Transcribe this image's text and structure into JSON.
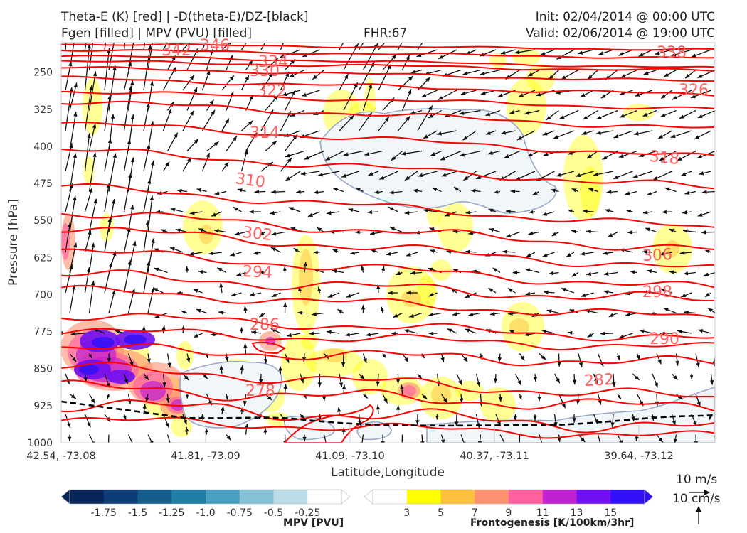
{
  "header": {
    "line1_left": "Theta-E (K) [red] | -D(theta-E)/DZ-[black]",
    "line2_left": "Fgen [filled] | MPV (PVU) [filled]",
    "fhr": "FHR:67",
    "init": "Init: 02/04/2014 @ 00:00 UTC",
    "valid": "Valid: 02/06/2014 @ 19:00 UTC"
  },
  "colors": {
    "theta_e": "#ff0000",
    "theta_e_label": "#ff6060",
    "arrow": "#111111",
    "mpv_outline": "#9aa9c8",
    "mpv_fill": "#f1f7f8",
    "dashed_line": "#000000"
  },
  "chart_data": {
    "type": "cross-section",
    "xlabel": "Latitude,Longitude",
    "ylabel": "Pressure [hPa]",
    "x_ticks": [
      "42.54, -73.08",
      "41.81, -73.09",
      "41.09, -73.10",
      "40.37, -73.11",
      "39.64, -73.12"
    ],
    "y_ticks": [
      250,
      325,
      400,
      475,
      550,
      625,
      700,
      775,
      850,
      925,
      1000
    ],
    "ylim": [
      1000,
      190
    ],
    "y_inverted": true,
    "theta_e_contours": [
      {
        "value": 342,
        "label": "342"
      },
      {
        "value": 346,
        "label": "346"
      },
      {
        "value": 334,
        "label": "334"
      },
      {
        "value": 338,
        "label": "338"
      },
      {
        "value": 330,
        "label": "330"
      },
      {
        "value": 326,
        "label": "326"
      },
      {
        "value": 322,
        "label": "322"
      },
      {
        "value": 318,
        "label": "318"
      },
      {
        "value": 314,
        "label": "314"
      },
      {
        "value": 310,
        "label": "310"
      },
      {
        "value": 306,
        "label": "306"
      },
      {
        "value": 302,
        "label": "302"
      },
      {
        "value": 298,
        "label": "298"
      },
      {
        "value": 294,
        "label": "294"
      },
      {
        "value": 290,
        "label": "290"
      },
      {
        "value": 286,
        "label": "286"
      },
      {
        "value": 282,
        "label": "282"
      },
      {
        "value": 278,
        "label": "278"
      }
    ],
    "wind_reference": {
      "horizontal": "10 m/s",
      "vertical": "10 cm/s"
    },
    "mpv_colorbar": {
      "label": "MPV [PVU]",
      "ticks": [
        "-1.75",
        "-1.5",
        "-1.25",
        "-1.0",
        "-0.75",
        "-0.5",
        "-0.25"
      ],
      "colors": [
        "#08255a",
        "#0c3d78",
        "#135d8f",
        "#1d7ea8",
        "#4aa0c2",
        "#85c0d5",
        "#bddde6",
        "#ffffff"
      ]
    },
    "fgen_colorbar": {
      "label": "Frontogenesis [K/100km/3hr]",
      "ticks": [
        "3",
        "5",
        "7",
        "9",
        "11",
        "13",
        "15"
      ],
      "colors": [
        "#ffffff",
        "#ffff00",
        "#ffc040",
        "#ff9070",
        "#ff60a0",
        "#c020d0",
        "#7010f0",
        "#3010f8"
      ]
    }
  }
}
